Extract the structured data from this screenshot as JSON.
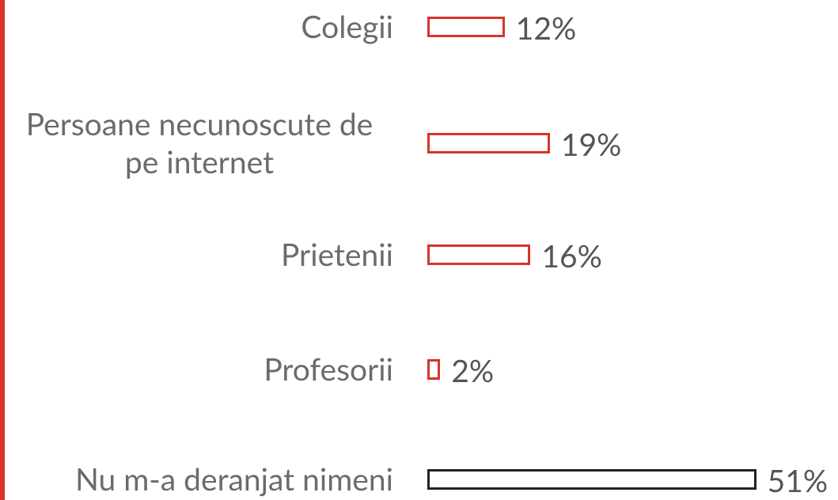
{
  "chart_data": {
    "type": "bar",
    "orientation": "horizontal",
    "categories": [
      "Colegii",
      "Persoane necunoscute de pe internet",
      "Prietenii",
      "Profesorii",
      "Nu m-a deranjat nimeni"
    ],
    "values": [
      12,
      19,
      16,
      2,
      51
    ],
    "value_labels": [
      "12%",
      "19%",
      "16%",
      "2%",
      "51%"
    ],
    "colors": [
      "#d9322b",
      "#d9322b",
      "#d9322b",
      "#d9322b",
      "#222222"
    ]
  }
}
